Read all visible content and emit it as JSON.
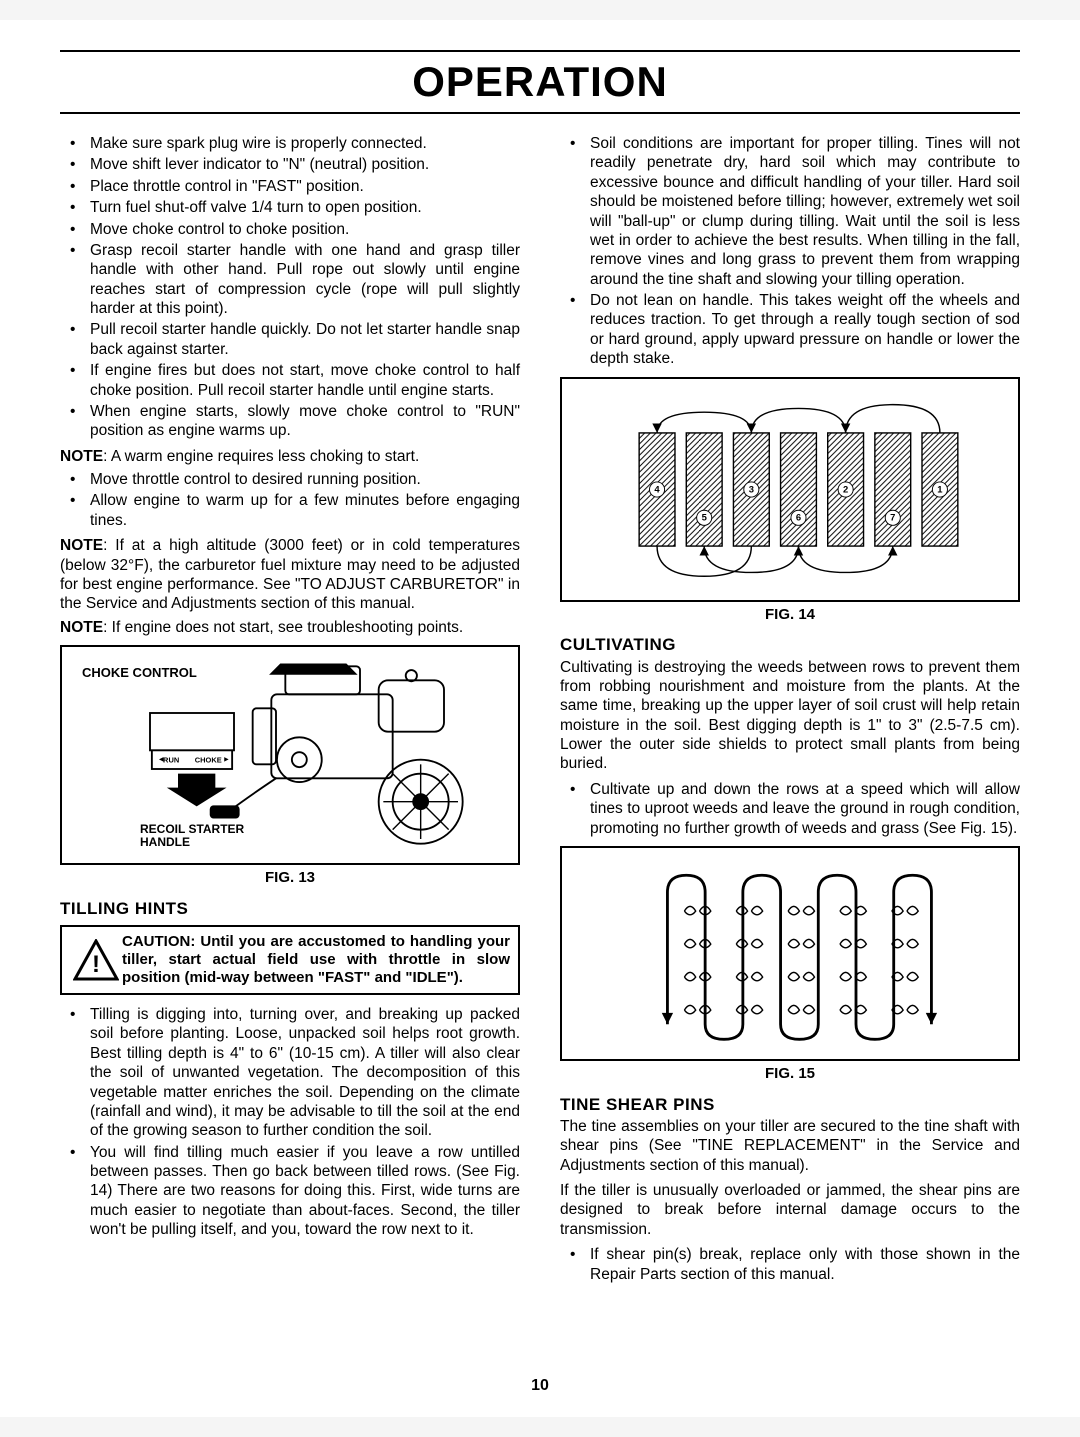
{
  "title": "OPERATION",
  "page_number": "10",
  "left": {
    "bullets1": [
      "Make sure spark plug wire is properly connected.",
      "Move shift lever indicator to \"N\" (neutral) position.",
      "Place throttle control in \"FAST\" position.",
      "Turn fuel shut-off valve 1/4 turn to open position.",
      "Move choke control to choke position.",
      "Grasp recoil starter handle with one hand and grasp tiller handle with other hand.  Pull rope out slowly until engine reaches start of compression cycle (rope will pull slightly harder at this point).",
      "Pull recoil starter handle quickly.  Do not let starter handle snap back against starter.",
      "If engine fires but does not start, move choke control to half choke position. Pull recoil starter handle until engine starts.",
      "When engine starts, slowly move choke control to \"RUN\" position as engine warms up."
    ],
    "note1_b": "NOTE",
    "note1": ":  A warm engine requires less choking to start.",
    "bullets2": [
      "Move throttle control to desired running position.",
      "Allow engine to warm up for a few minutes before engaging tines."
    ],
    "note2_b": "NOTE",
    "note2": ": If at a high altitude (3000 feet) or in cold temperatures (below 32°F), the carburetor fuel mixture may need to be adjusted for best engine performance. See \"TO ADJUST CARBURETOR\" in the Service and Adjustments section of this manual.",
    "note3_b": "NOTE",
    "note3": ":  If engine does not start, see troubleshooting points.",
    "fig13": {
      "choke_label": "CHOKE CONTROL",
      "run": "RUN",
      "choke": "CHOKE",
      "recoil_label1": "RECOIL STARTER",
      "recoil_label2": "HANDLE",
      "caption": "FIG. 13"
    },
    "tilling_head": "TILLING HINTS",
    "caution": "CAUTION:  Until you are accustomed to handling your tiller, start actual field use with throttle in slow position (mid-way between \"FAST\" and \"IDLE\").",
    "bullets3": [
      "Tilling is digging into, turning over, and breaking up packed soil before planting. Loose, unpacked soil helps root growth. Best tilling depth is 4\" to 6\" (10-15 cm). A tiller will also clear the soil of unwanted vegetation. The decomposition of this vegetable matter enriches the soil.  Depending on the climate (rainfall and wind), it may be advisable to till the soil at the end of the growing season to further condition the soil.",
      "You will find tilling much easier if you leave a row untilled between passes. Then go back between tilled rows. (See Fig. 14) There are two reasons for doing this. First, wide turns are much easier to negotiate than about-faces. Second, the tiller won't be pulling  itself, and you, toward the row next to it."
    ]
  },
  "right": {
    "bullets1": [
      "Soil conditions are important for proper tilling. Tines will not readily penetrate dry, hard soil which may contribute to excessive bounce and difficult handling of your tiller. Hard soil should be moistened before tilling; however, extremely wet soil will \"ball-up\" or clump during tilling. Wait until the soil is less wet in order to achieve the best results. When tilling in the fall, remove vines and long grass to prevent them from wrapping around the tine shaft and slowing your tilling operation.",
      "Do not lean on handle.  This takes weight off the wheels and reduces traction.  To get through a really tough section of sod or hard ground, apply upward pressure on handle or lower the depth stake."
    ],
    "fig14": {
      "caption": "FIG. 14",
      "labels": [
        "4",
        "3",
        "2",
        "1",
        "5",
        "6",
        "7"
      ]
    },
    "cultivating_head": "CULTIVATING",
    "cultivating_para": "Cultivating is destroying the weeds between rows to prevent them from robbing nourishment and moisture from the plants. At the same time, breaking up the upper layer of soil crust will help retain moisture in the soil. Best digging depth is 1\" to 3\" (2.5-7.5 cm).  Lower the outer side shields to protect small plants from being buried.",
    "bullets2": [
      "Cultivate up and down the rows at a speed which will allow tines to uproot weeds and leave the ground in rough condition, promoting no further growth of weeds and grass (See Fig. 15)."
    ],
    "fig15": {
      "caption": "FIG. 15"
    },
    "tine_head": "TINE SHEAR PINS",
    "tine_para1": "The tine assemblies on your tiller are secured to the tine shaft with shear pins (See \"TINE REPLACEMENT\" in the Service and Adjustments section of this manual).",
    "tine_para2": "If the tiller is unusually overloaded or jammed, the shear pins are designed to break before internal damage occurs to the transmission.",
    "bullets3": [
      "If shear pin(s) break, replace only with those shown in the Repair Parts section of this manual."
    ]
  }
}
